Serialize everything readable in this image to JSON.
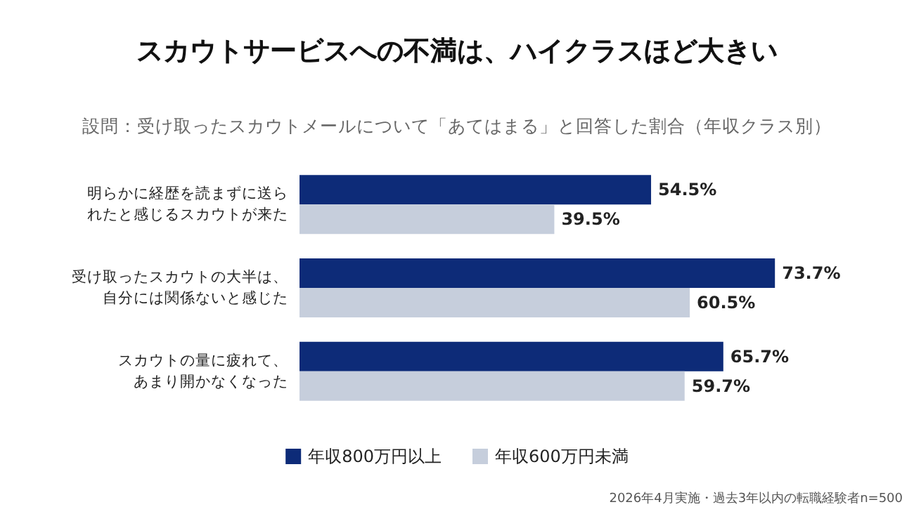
{
  "chart_data": {
    "type": "bar",
    "orientation": "horizontal",
    "tick_labels": "y",
    "title": "スカウトサービスへの不満は、ハイクラスほど大きい",
    "subtitle": "設問：受け取ったスカウトメールについて「あてはまる」と回答した割合（年収クラス別）",
    "categories": [
      "明らかに経歴を読まずに送られたと感じるスカウトが来た",
      "受け取ったスカウトの大半は、自分には関係ないと感じた",
      "スカウトの量に疲れて、あまり開かなくなった"
    ],
    "series": [
      {
        "name": "年収800万円以上",
        "color": "#0d2b78",
        "values": [
          54.5,
          73.7,
          65.7
        ],
        "value_labels": [
          "54.5%",
          "73.7%",
          "65.7%"
        ]
      },
      {
        "name": "年収600万円未満",
        "color": "#c6cedc",
        "values": [
          39.5,
          60.5,
          59.7
        ],
        "value_labels": [
          "39.5%",
          "60.5%",
          "59.7%"
        ]
      }
    ],
    "legend": "bottom",
    "annotations": [
      "2026年4月実施・過去3年以内の転職経験者n=500"
    ]
  }
}
